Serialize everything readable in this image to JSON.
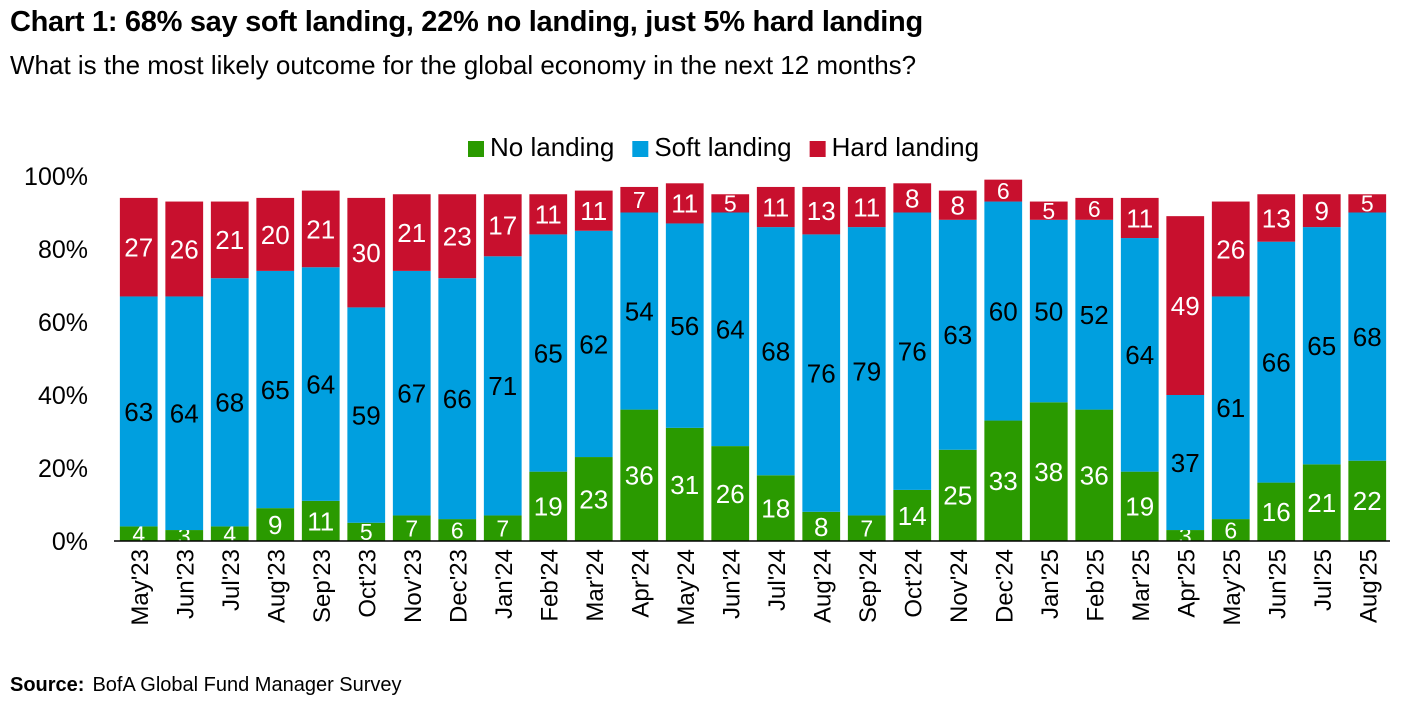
{
  "header": {
    "title": "Chart 1: 68% say soft landing, 22% no landing, just 5% hard landing",
    "subtitle": "What is the most likely outcome for the global economy in the next 12 months?"
  },
  "source": {
    "label": "Source:",
    "text": "BofA Global Fund Manager Survey"
  },
  "colors": {
    "no_landing": "#2a9a00",
    "soft_landing": "#009fdf",
    "hard_landing": "#c8102e"
  },
  "chart_data": {
    "type": "bar",
    "stacked": true,
    "title": "Chart 1: 68% say soft landing, 22% no landing, just 5% hard landing",
    "subtitle": "What is the most likely outcome for the global economy in the next 12 months?",
    "xlabel": "",
    "ylabel": "",
    "ylim": [
      0,
      100
    ],
    "yticks": [
      0,
      20,
      40,
      60,
      80,
      100
    ],
    "ytick_labels": [
      "0%",
      "20%",
      "40%",
      "60%",
      "80%",
      "100%"
    ],
    "legend_position": "top-center",
    "categories": [
      "May'23",
      "Jun'23",
      "Jul'23",
      "Aug'23",
      "Sep'23",
      "Oct'23",
      "Nov'23",
      "Dec'23",
      "Jan'24",
      "Feb'24",
      "Mar'24",
      "Apr'24",
      "May'24",
      "Jun'24",
      "Jul'24",
      "Aug'24",
      "Sep'24",
      "Oct'24",
      "Nov'24",
      "Dec'24",
      "Jan'25",
      "Feb'25",
      "Mar'25",
      "Apr'25",
      "May'25",
      "Jun'25",
      "Jul'25",
      "Aug'25"
    ],
    "series": [
      {
        "name": "No landing",
        "color": "#2a9a00",
        "values": [
          4,
          3,
          4,
          9,
          11,
          5,
          7,
          6,
          7,
          19,
          23,
          36,
          31,
          26,
          18,
          8,
          7,
          14,
          25,
          33,
          38,
          36,
          19,
          3,
          6,
          16,
          21,
          22
        ]
      },
      {
        "name": "Soft landing",
        "color": "#009fdf",
        "values": [
          63,
          64,
          68,
          65,
          64,
          59,
          67,
          66,
          71,
          65,
          62,
          54,
          56,
          64,
          68,
          76,
          79,
          76,
          63,
          60,
          50,
          52,
          64,
          37,
          61,
          66,
          65,
          68
        ]
      },
      {
        "name": "Hard landing",
        "color": "#c8102e",
        "values": [
          27,
          26,
          21,
          20,
          21,
          30,
          21,
          23,
          17,
          11,
          11,
          7,
          11,
          5,
          11,
          13,
          11,
          8,
          8,
          6,
          5,
          6,
          11,
          49,
          26,
          13,
          9,
          5
        ]
      }
    ],
    "source": "BofA Global Fund Manager Survey"
  }
}
